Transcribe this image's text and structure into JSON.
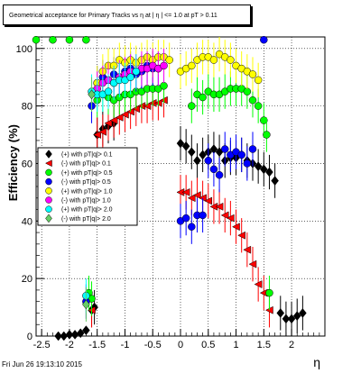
{
  "title": "Geometrical acceptance for Primary Tracks vs   η at |  η | <= 1.0 at pT > 0.11",
  "timestamp": "Fri Jun 26 19:13:10 2015",
  "chart_data": {
    "type": "scatter",
    "title": "Geometrical acceptance for Primary Tracks vs   η at |  η | <= 1.0 at pT > 0.11",
    "xlabel": "η",
    "ylabel": "Efficiency (%)",
    "xlim": [
      -2.6,
      2.6
    ],
    "ylim": [
      0,
      104
    ],
    "grid": true,
    "legend_position": "left",
    "x_ticks": [
      "-2.5",
      "-2",
      "-1.5",
      "-1",
      "-0.5",
      "0",
      "0.5",
      "1",
      "1.5",
      "2"
    ],
    "x_tick_values": [
      -2.5,
      -2,
      -1.5,
      -1,
      -0.5,
      0,
      0.5,
      1,
      1.5,
      2
    ],
    "y_ticks": [
      "0",
      "20",
      "40",
      "60",
      "80",
      "100"
    ],
    "y_tick_values": [
      0,
      20,
      40,
      60,
      80,
      100
    ],
    "series": [
      {
        "name": "(+) with pT|q|> 0.1",
        "color": "#000000",
        "marker": "diamond",
        "x": [
          -2.2,
          -2.1,
          -2.0,
          -1.9,
          -1.8,
          -1.7,
          -1.6,
          -1.55,
          -1.5,
          -1.4,
          -1.3,
          -1.2,
          0.0,
          0.1,
          0.2,
          0.3,
          0.4,
          0.5,
          0.6,
          0.7,
          0.8,
          0.9,
          1.0,
          1.1,
          1.2,
          1.3,
          1.4,
          1.5,
          1.6,
          1.7,
          1.8,
          1.9,
          2.0,
          2.1,
          2.2
        ],
        "y": [
          0,
          0,
          0.5,
          0.5,
          1,
          2,
          9,
          10,
          70,
          72,
          73,
          74,
          67,
          66,
          64,
          61,
          63,
          64,
          65,
          64,
          61,
          62,
          62,
          63,
          61,
          60,
          59,
          58,
          57,
          54,
          8,
          6,
          6,
          7,
          8
        ]
      },
      {
        "name": "(-) with pT|q|> 0.1",
        "color": "#ff0000",
        "marker": "triangle",
        "x": [
          -1.6,
          -1.5,
          -1.4,
          -1.3,
          -1.2,
          -1.1,
          -1.0,
          -0.9,
          -0.8,
          -0.7,
          -0.6,
          -0.5,
          -0.4,
          -0.3,
          0.0,
          0.1,
          0.2,
          0.3,
          0.4,
          0.5,
          0.6,
          0.7,
          0.8,
          0.9,
          1.0,
          1.1,
          1.2,
          1.3,
          1.4,
          1.5,
          1.6
        ],
        "y": [
          9,
          70,
          71,
          74,
          75,
          76,
          77,
          78,
          79,
          80,
          80,
          81,
          81,
          82,
          50,
          50,
          48,
          49,
          48,
          47,
          45,
          45,
          42,
          41,
          38,
          35,
          30,
          25,
          18,
          15,
          9
        ]
      },
      {
        "name": "(+) with pT|q|> 0.5",
        "color": "#00ff00",
        "marker": "circle",
        "x": [
          -2.6,
          -2.3,
          -2.0,
          -1.7,
          -1.65,
          -1.6,
          -1.5,
          -1.4,
          -1.3,
          -1.2,
          -1.1,
          -1.0,
          -0.9,
          -0.8,
          -0.7,
          -0.6,
          -0.5,
          -0.4,
          -0.3,
          0.2,
          0.3,
          0.4,
          0.5,
          0.6,
          0.7,
          0.8,
          0.9,
          1.0,
          1.1,
          1.2,
          1.3,
          1.4,
          1.5,
          1.55,
          1.6
        ],
        "y": [
          103,
          103,
          103,
          103,
          15,
          13,
          82,
          84,
          83,
          82,
          83,
          84,
          84,
          85,
          85,
          86,
          86,
          86,
          87,
          80,
          84,
          83,
          85,
          84,
          84,
          85,
          86,
          86,
          86,
          85,
          82,
          80,
          75,
          70,
          15
        ]
      },
      {
        "name": "(-) with pT|q|> 0.5",
        "color": "#0000ff",
        "marker": "circle",
        "x": [
          -1.7,
          -1.6,
          -1.5,
          -1.4,
          -1.3,
          -1.2,
          -1.1,
          -1.0,
          -0.9,
          -0.8,
          -0.7,
          -0.6,
          -0.5,
          -0.4,
          0.0,
          0.1,
          0.2,
          0.3,
          0.4,
          0.5,
          0.6,
          0.7,
          0.8,
          0.9,
          1.0,
          1.1,
          1.2,
          1.3,
          1.5
        ],
        "y": [
          12,
          80,
          88,
          90,
          89,
          91,
          90,
          92,
          93,
          91,
          92,
          94,
          93,
          93,
          40,
          41,
          38,
          42,
          42,
          61,
          58,
          56,
          65,
          63,
          64,
          63,
          60,
          65,
          103
        ]
      },
      {
        "name": "(+) with pT|q|> 1.0",
        "color": "#ffff00",
        "marker": "circle",
        "x": [
          -1.5,
          -1.4,
          -1.3,
          -1.2,
          -1.1,
          -1.0,
          -0.9,
          -0.8,
          -0.7,
          -0.6,
          -0.5,
          -0.4,
          -0.3,
          -0.2,
          0.0,
          0.1,
          0.2,
          0.3,
          0.4,
          0.5,
          0.6,
          0.7,
          0.8,
          0.9,
          1.0,
          1.1,
          1.2,
          1.3,
          1.4
        ],
        "y": [
          88,
          92,
          94,
          94,
          96,
          95,
          96,
          95,
          96,
          97,
          96,
          97,
          97,
          96,
          92,
          93,
          94,
          96,
          97,
          97,
          96,
          98,
          97,
          96,
          94,
          93,
          92,
          91,
          89
        ]
      },
      {
        "name": "(-) with pT|q|> 1.0",
        "color": "#ff00ff",
        "marker": "circle",
        "x": [
          -1.5,
          -1.4,
          -1.3,
          -1.2,
          -1.1,
          -1.0,
          -0.9,
          -0.8,
          -0.7,
          -0.6,
          -0.5,
          -0.4,
          -0.3
        ],
        "y": [
          86,
          88,
          89,
          88,
          90,
          91,
          92,
          92,
          93,
          93,
          94,
          93,
          94
        ]
      },
      {
        "name": "(+) with pT|q|> 2.0",
        "color": "#00ffff",
        "marker": "circle",
        "x": [
          -1.7,
          -1.6,
          -1.5,
          -1.4,
          -1.3,
          -1.2,
          -1.1,
          -1.0,
          -0.9,
          -0.8
        ],
        "y": [
          14,
          85,
          84,
          84,
          85,
          88,
          89,
          89,
          90,
          92
        ]
      },
      {
        "name": "(-) with pT|q|> 2.0",
        "color": "#66cc66",
        "marker": "diamond",
        "x": [
          -1.7,
          -1.6
        ],
        "y": [
          11,
          84
        ]
      }
    ]
  }
}
